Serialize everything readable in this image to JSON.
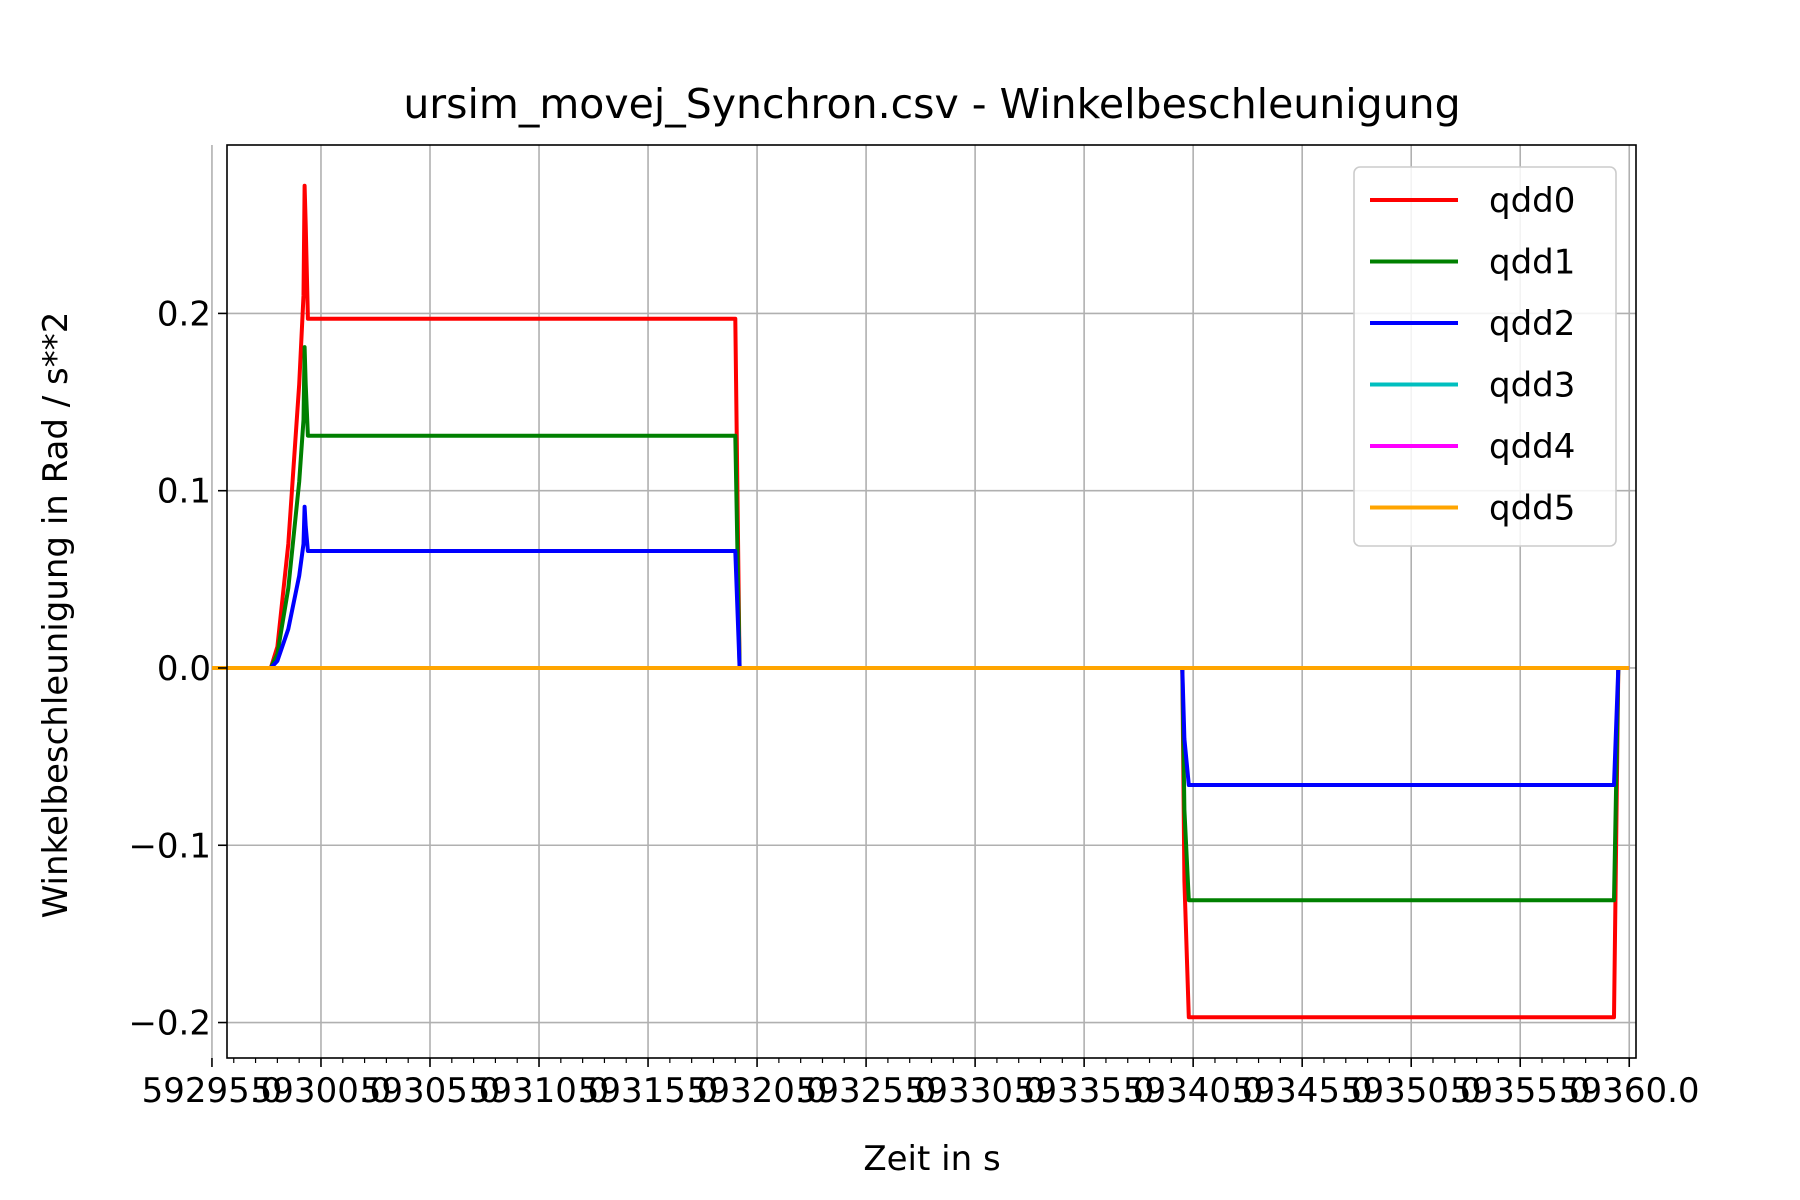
{
  "chart_data": {
    "type": "line",
    "title": "ursim_movej_Synchron.csv - Winkelbeschleunigung",
    "xlabel": "Zeit in s",
    "ylabel": "Winkelbeschleunigung in Rad / s**2",
    "xlim": [
      59295.69,
      59360.31
    ],
    "ylim": [
      -0.22,
      0.295
    ],
    "grid": true,
    "legend_position": "top-right",
    "x_ticks": [
      {
        "value": 59295.0,
        "label": "59295.0"
      },
      {
        "value": 59300.0,
        "label": "59300.0"
      },
      {
        "value": 59305.0,
        "label": "59305.0"
      },
      {
        "value": 59310.0,
        "label": "59310.0"
      },
      {
        "value": 59315.0,
        "label": "59315.0"
      },
      {
        "value": 59320.0,
        "label": "59320.0"
      },
      {
        "value": 59325.0,
        "label": "59325.0"
      },
      {
        "value": 59330.0,
        "label": "59330.0"
      },
      {
        "value": 59335.0,
        "label": "59335.0"
      },
      {
        "value": 59340.0,
        "label": "59340.0"
      },
      {
        "value": 59345.0,
        "label": "59345.0"
      },
      {
        "value": 59350.0,
        "label": "59350.0"
      },
      {
        "value": 59355.0,
        "label": "59355.0"
      },
      {
        "value": 59360.0,
        "label": "59360.0"
      }
    ],
    "y_ticks": [
      {
        "value": -0.2,
        "label": "−0.2"
      },
      {
        "value": -0.1,
        "label": "−0.1"
      },
      {
        "value": 0.0,
        "label": "0.0"
      },
      {
        "value": 0.1,
        "label": "0.1"
      },
      {
        "value": 0.2,
        "label": "0.2"
      }
    ],
    "series": [
      {
        "name": "qdd0",
        "color": "#ff0000",
        "x": [
          59295.0,
          59297.7,
          59298.0,
          59298.5,
          59299.0,
          59299.2,
          59299.25,
          59299.3,
          59299.4,
          59319.0,
          59319.2,
          59339.5,
          59339.6,
          59339.8,
          59359.3,
          59359.5,
          59360.0
        ],
        "y": [
          0,
          0,
          0.012,
          0.07,
          0.16,
          0.21,
          0.272,
          0.25,
          0.197,
          0.197,
          0,
          0,
          -0.12,
          -0.197,
          -0.197,
          0,
          0
        ]
      },
      {
        "name": "qdd1",
        "color": "#008000",
        "x": [
          59295.0,
          59297.7,
          59298.0,
          59298.5,
          59299.0,
          59299.2,
          59299.25,
          59299.3,
          59299.4,
          59319.0,
          59319.2,
          59339.5,
          59339.6,
          59339.8,
          59359.3,
          59359.5,
          59360.0
        ],
        "y": [
          0,
          0,
          0.008,
          0.045,
          0.105,
          0.14,
          0.181,
          0.16,
          0.131,
          0.131,
          0,
          0,
          -0.08,
          -0.131,
          -0.131,
          0,
          0
        ]
      },
      {
        "name": "qdd2",
        "color": "#0000ff",
        "x": [
          59295.0,
          59297.7,
          59298.0,
          59298.5,
          59299.0,
          59299.2,
          59299.25,
          59299.3,
          59299.4,
          59319.0,
          59319.2,
          59339.5,
          59339.6,
          59339.8,
          59359.3,
          59359.5,
          59360.0
        ],
        "y": [
          0,
          0,
          0.004,
          0.022,
          0.052,
          0.07,
          0.091,
          0.08,
          0.066,
          0.066,
          0,
          0,
          -0.04,
          -0.066,
          -0.066,
          0,
          0
        ]
      },
      {
        "name": "qdd3",
        "color": "#00bfbf",
        "x": [
          59295.0,
          59360.0
        ],
        "y": [
          0,
          0
        ]
      },
      {
        "name": "qdd4",
        "color": "#ff00ff",
        "x": [
          59295.0,
          59360.0
        ],
        "y": [
          0,
          0
        ]
      },
      {
        "name": "qdd5",
        "color": "#ffa500",
        "x": [
          59295.0,
          59360.0
        ],
        "y": [
          0,
          0
        ]
      }
    ]
  }
}
